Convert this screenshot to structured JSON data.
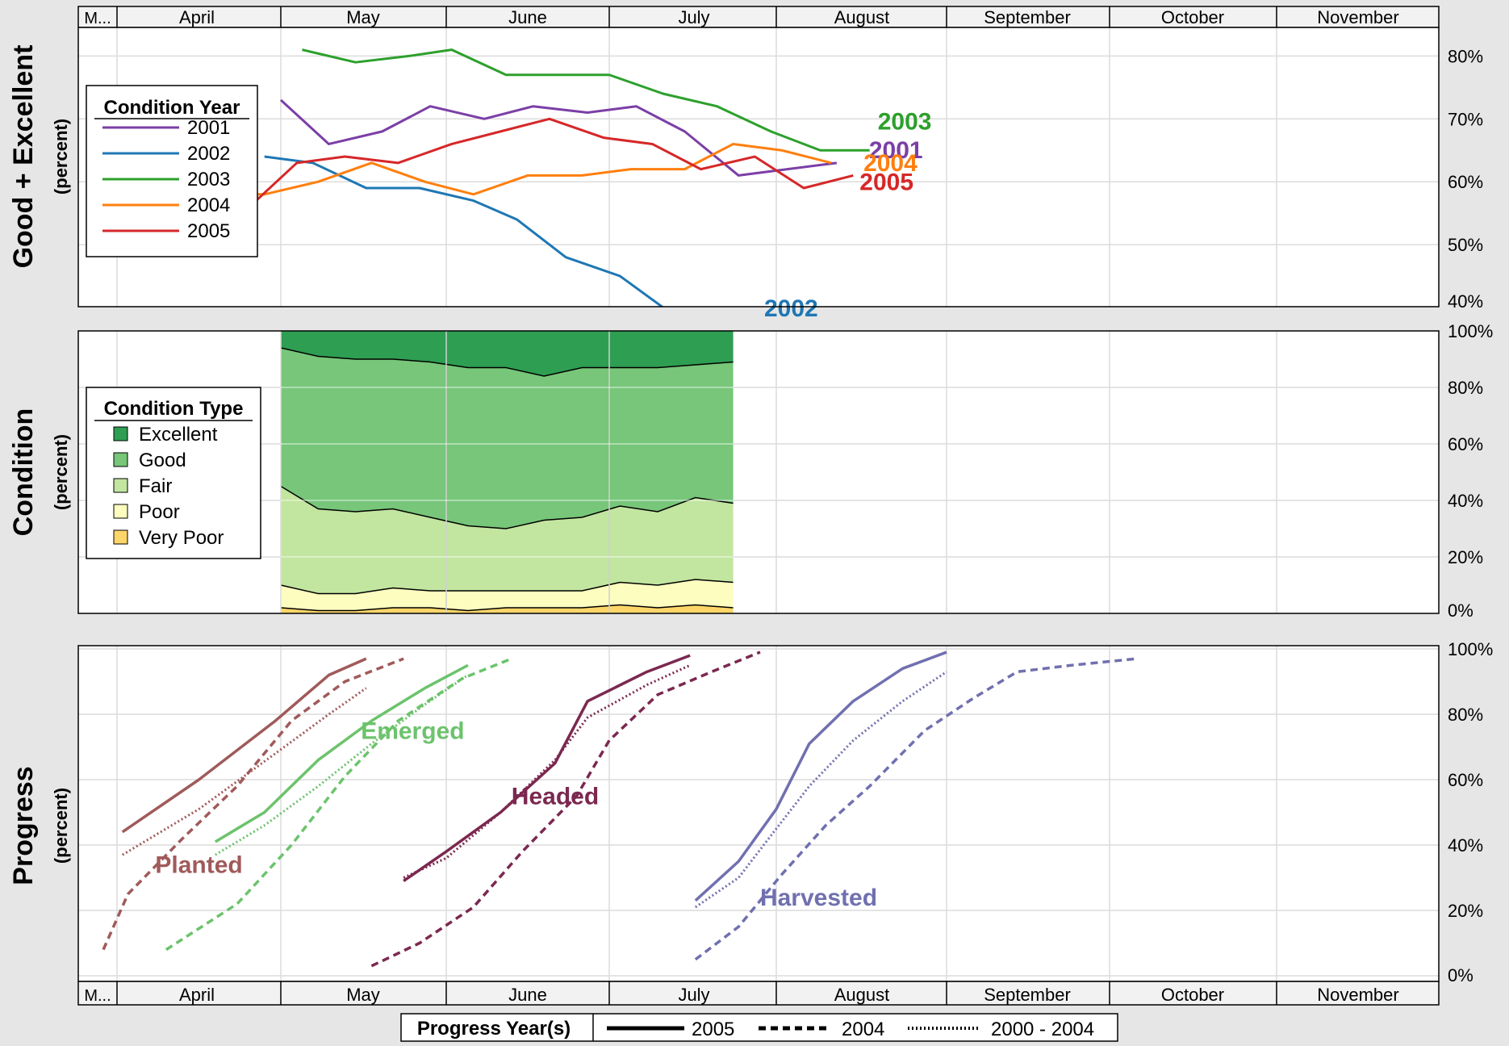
{
  "months": [
    "M...",
    "April",
    "May",
    "June",
    "July",
    "August",
    "September",
    "October",
    "November"
  ],
  "chart_data": [
    {
      "type": "line",
      "ylabel": "Good + Excellent",
      "ylabel_sub": "(percent)",
      "ylim": [
        40,
        82
      ],
      "yticks": [
        40,
        50,
        60,
        70,
        80
      ],
      "ytick_labels": [
        "40%",
        "50%",
        "60%",
        "70%",
        "80%"
      ],
      "legend": {
        "title": "Condition Year",
        "placement": "left"
      },
      "series": [
        {
          "name": "2001",
          "color": "#7b3fa6",
          "label": "2001",
          "points": [
            [
              "May 1",
              73
            ],
            [
              "May 10",
              66
            ],
            [
              "May 20",
              68
            ],
            [
              "May 29",
              72
            ],
            [
              "Jun 8",
              70
            ],
            [
              "Jun 17",
              72
            ],
            [
              "Jun 27",
              71
            ],
            [
              "Jul 6",
              72
            ],
            [
              "Jul 15",
              68
            ],
            [
              "Jul 25",
              61
            ],
            [
              "Aug 3",
              62
            ],
            [
              "Aug 12",
              63
            ]
          ]
        },
        {
          "name": "2002",
          "color": "#1f77b4",
          "label": "2002",
          "points": [
            [
              "Apr 28",
              64
            ],
            [
              "May 7",
              63
            ],
            [
              "May 17",
              59
            ],
            [
              "May 27",
              59
            ],
            [
              "Jun 6",
              57
            ],
            [
              "Jun 14",
              54
            ],
            [
              "Jun 23",
              48
            ],
            [
              "Jul 3",
              45
            ],
            [
              "Jul 11",
              40
            ],
            [
              "Jul 20",
              40
            ],
            [
              "Aug 1",
              39
            ]
          ]
        },
        {
          "name": "2003",
          "color": "#2ca02c",
          "label": "2003",
          "points": [
            [
              "May 5",
              81
            ],
            [
              "May 15",
              79
            ],
            [
              "May 25",
              80
            ],
            [
              "Jun 2",
              81
            ],
            [
              "Jun 12",
              77
            ],
            [
              "Jun 22",
              77
            ],
            [
              "Jul 1",
              77
            ],
            [
              "Jul 11",
              74
            ],
            [
              "Jul 21",
              72
            ],
            [
              "Jul 31",
              68
            ],
            [
              "Aug 9",
              65
            ],
            [
              "Aug 18",
              65
            ]
          ]
        },
        {
          "name": "2004",
          "color": "#ff7f0e",
          "label": "2004",
          "points": [
            [
              "Apr 19",
              58
            ],
            [
              "Apr 28",
              58
            ],
            [
              "May 8",
              60
            ],
            [
              "May 18",
              63
            ],
            [
              "May 28",
              60
            ],
            [
              "Jun 6",
              58
            ],
            [
              "Jun 16",
              61
            ],
            [
              "Jun 26",
              61
            ],
            [
              "Jul 5",
              62
            ],
            [
              "Jul 15",
              62
            ],
            [
              "Jul 24",
              66
            ],
            [
              "Aug 2",
              65
            ],
            [
              "Aug 11",
              63
            ]
          ]
        },
        {
          "name": "2005",
          "color": "#d62728",
          "label": "2005",
          "points": [
            [
              "Apr 24",
              55
            ],
            [
              "May 4",
              63
            ],
            [
              "May 13",
              64
            ],
            [
              "May 23",
              63
            ],
            [
              "Jun 2",
              66
            ],
            [
              "Jun 11",
              68
            ],
            [
              "Jun 20",
              70
            ],
            [
              "Jun 30",
              67
            ],
            [
              "Jul 9",
              66
            ],
            [
              "Jul 18",
              62
            ],
            [
              "Jul 28",
              64
            ],
            [
              "Aug 6",
              59
            ],
            [
              "Aug 15",
              61
            ]
          ]
        }
      ]
    },
    {
      "type": "area",
      "ylabel": "Condition",
      "ylabel_sub": "(percent)",
      "ylim": [
        0,
        100
      ],
      "yticks": [
        0,
        20,
        40,
        60,
        80,
        100
      ],
      "ytick_labels": [
        "0%",
        "20%",
        "40%",
        "60%",
        "80%",
        "100%"
      ],
      "legend": {
        "title": "Condition Type",
        "placement": "left"
      },
      "x": [
        "May 1",
        "May 8",
        "May 15",
        "May 22",
        "May 29",
        "Jun 5",
        "Jun 12",
        "Jun 19",
        "Jun 26",
        "Jul 3",
        "Jul 10",
        "Jul 17",
        "Jul 24"
      ],
      "series": [
        {
          "name": "Very Poor",
          "color": "#fdd66a",
          "values": [
            2,
            1,
            1,
            2,
            2,
            1,
            2,
            2,
            2,
            3,
            2,
            3,
            2
          ]
        },
        {
          "name": "Poor",
          "color": "#fdfdc0",
          "values": [
            8,
            6,
            6,
            7,
            6,
            7,
            6,
            6,
            6,
            8,
            8,
            9,
            9
          ]
        },
        {
          "name": "Fair",
          "color": "#c2e5a0",
          "values": [
            35,
            30,
            29,
            28,
            26,
            23,
            22,
            25,
            26,
            27,
            26,
            29,
            28
          ]
        },
        {
          "name": "Good",
          "color": "#77c679",
          "values": [
            49,
            54,
            54,
            53,
            55,
            56,
            57,
            51,
            53,
            49,
            51,
            47,
            50
          ]
        },
        {
          "name": "Excellent",
          "color": "#2e9e52",
          "values": [
            6,
            9,
            10,
            10,
            11,
            13,
            13,
            16,
            13,
            13,
            13,
            12,
            11
          ]
        }
      ]
    },
    {
      "type": "line",
      "ylabel": "Progress",
      "ylabel_sub": "(percent)",
      "ylim": [
        0,
        100
      ],
      "yticks": [
        0,
        20,
        40,
        60,
        80,
        100
      ],
      "ytick_labels": [
        "0%",
        "20%",
        "40%",
        "60%",
        "80%",
        "100%"
      ],
      "legend": {
        "title": "Progress Year(s)",
        "placement": "bottom",
        "items": [
          {
            "label": "2005",
            "style": "solid"
          },
          {
            "label": "2004",
            "style": "dashed"
          },
          {
            "label": "2000 - 2004",
            "style": "dotted"
          }
        ]
      },
      "groups": [
        {
          "label": "Planted",
          "color": "#a05a5a",
          "label_at": [
            "Apr 8",
            34
          ],
          "lines": {
            "2005": [
              [
                "Apr 2",
                44
              ],
              [
                "Apr 16",
                60
              ],
              [
                "Apr 30",
                78
              ],
              [
                "May 10",
                92
              ],
              [
                "May 17",
                97
              ]
            ],
            "2004": [
              [
                "Mar 27",
                8
              ],
              [
                "Apr 3",
                25
              ],
              [
                "Apr 13",
                42
              ],
              [
                "Apr 23",
                58
              ],
              [
                "May 3",
                78
              ],
              [
                "May 13",
                90
              ],
              [
                "May 24",
                97
              ]
            ],
            "2000 - 2004": [
              [
                "Apr 2",
                37
              ],
              [
                "Apr 16",
                51
              ],
              [
                "Apr 30",
                68
              ],
              [
                "May 10",
                80
              ],
              [
                "May 17",
                88
              ]
            ]
          }
        },
        {
          "label": "Emerged",
          "color": "#6cc36c",
          "label_at": [
            "May 16",
            75
          ],
          "lines": {
            "2005": [
              [
                "Apr 19",
                41
              ],
              [
                "Apr 28",
                50
              ],
              [
                "May 8",
                66
              ],
              [
                "May 18",
                78
              ],
              [
                "May 28",
                88
              ],
              [
                "Jun 5",
                95
              ]
            ],
            "2004": [
              [
                "Apr 10",
                8
              ],
              [
                "Apr 23",
                22
              ],
              [
                "May 3",
                40
              ],
              [
                "May 13",
                61
              ],
              [
                "May 23",
                78
              ],
              [
                "Jun 4",
                91
              ],
              [
                "Jun 13",
                97
              ]
            ],
            "2000 - 2004": [
              [
                "Apr 19",
                37
              ],
              [
                "Apr 28",
                46
              ],
              [
                "May 8",
                58
              ],
              [
                "May 18",
                71
              ],
              [
                "May 28",
                83
              ],
              [
                "Jun 5",
                92
              ]
            ]
          }
        },
        {
          "label": "Headed",
          "color": "#7b2850",
          "label_at": [
            "Jun 13",
            55
          ],
          "lines": {
            "2005": [
              [
                "May 24",
                29
              ],
              [
                "Jun 1",
                38
              ],
              [
                "Jun 11",
                50
              ],
              [
                "Jun 21",
                65
              ],
              [
                "Jun 27",
                84
              ],
              [
                "Jul 8",
                93
              ],
              [
                "Jul 16",
                98
              ]
            ],
            "2004": [
              [
                "May 18",
                3
              ],
              [
                "May 27",
                10
              ],
              [
                "Jun 6",
                21
              ],
              [
                "Jun 15",
                38
              ],
              [
                "Jun 25",
                55
              ],
              [
                "Jul 1",
                72
              ],
              [
                "Jul 10",
                86
              ],
              [
                "Jul 20",
                93
              ],
              [
                "Jul 29",
                99
              ]
            ],
            "2000 - 2004": [
              [
                "May 24",
                30
              ],
              [
                "Jun 1",
                36
              ],
              [
                "Jun 11",
                50
              ],
              [
                "Jun 21",
                66
              ],
              [
                "Jun 27",
                79
              ],
              [
                "Jul 8",
                89
              ],
              [
                "Jul 16",
                95
              ]
            ]
          }
        },
        {
          "label": "Harvested",
          "color": "#7070b0",
          "label_at": [
            "Jul 29",
            24
          ],
          "lines": {
            "2005": [
              [
                "Jul 17",
                23
              ],
              [
                "Jul 25",
                35
              ],
              [
                "Aug 1",
                51
              ],
              [
                "Aug 7",
                71
              ],
              [
                "Aug 15",
                84
              ],
              [
                "Aug 24",
                94
              ],
              [
                "Sep 1",
                99
              ]
            ],
            "2004": [
              [
                "Jul 17",
                5
              ],
              [
                "Jul 25",
                15
              ],
              [
                "Aug 2",
                31
              ],
              [
                "Aug 10",
                46
              ],
              [
                "Aug 18",
                58
              ],
              [
                "Aug 28",
                75
              ],
              [
                "Sep 6",
                85
              ],
              [
                "Sep 14",
                93
              ],
              [
                "Sep 24",
                95
              ],
              [
                "Oct 6",
                97
              ]
            ],
            "2000 - 2004": [
              [
                "Jul 17",
                21
              ],
              [
                "Jul 25",
                30
              ],
              [
                "Aug 1",
                45
              ],
              [
                "Aug 7",
                58
              ],
              [
                "Aug 15",
                72
              ],
              [
                "Aug 24",
                84
              ],
              [
                "Sep 1",
                93
              ]
            ]
          }
        }
      ]
    }
  ]
}
